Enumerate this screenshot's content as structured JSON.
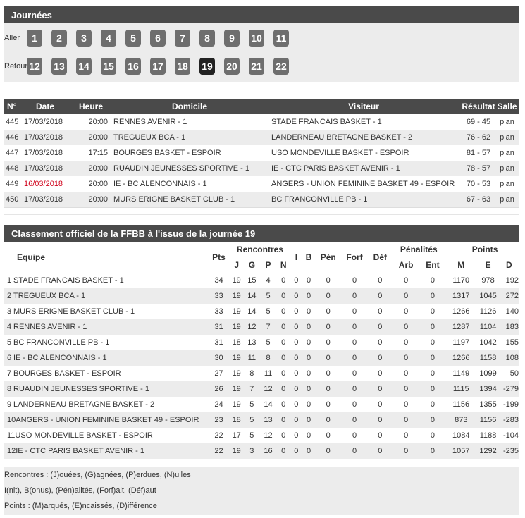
{
  "journees": {
    "title": "Journées",
    "aller_label": "Aller",
    "retour_label": "Retour",
    "aller": [
      "1",
      "2",
      "3",
      "4",
      "5",
      "6",
      "7",
      "8",
      "9",
      "10",
      "11"
    ],
    "retour": [
      "12",
      "13",
      "14",
      "15",
      "16",
      "17",
      "18",
      "19",
      "20",
      "21",
      "22"
    ],
    "active": "19"
  },
  "matches": {
    "headers": [
      "N°",
      "Date",
      "Heure",
      "Domicile",
      "Visiteur",
      "Résultat",
      "Salle"
    ],
    "rows": [
      {
        "num": "445",
        "date": "17/03/2018",
        "time": "20:00",
        "home": "RENNES AVENIR - 1",
        "away": "STADE FRANCAIS BASKET - 1",
        "score": "69 - 45",
        "salle": "plan"
      },
      {
        "num": "446",
        "date": "17/03/2018",
        "time": "20:00",
        "home": "TREGUEUX BCA - 1",
        "away": "LANDERNEAU BRETAGNE BASKET - 2",
        "score": "76 - 62",
        "salle": "plan"
      },
      {
        "num": "447",
        "date": "17/03/2018",
        "time": "17:15",
        "home": "BOURGES BASKET - ESPOIR",
        "away": "USO MONDEVILLE BASKET - ESPOIR",
        "score": "81 - 57",
        "salle": "plan"
      },
      {
        "num": "448",
        "date": "17/03/2018",
        "time": "20:00",
        "home": "RUAUDIN JEUNESSES SPORTIVE - 1",
        "away": "IE - CTC PARIS BASKET AVENIR - 1",
        "score": "78 - 57",
        "salle": "plan"
      },
      {
        "num": "449",
        "date": "16/03/2018",
        "time": "20:00",
        "home": "IE - BC ALENCONNAIS - 1",
        "away": "ANGERS - UNION FEMININE BASKET 49 - ESPOIR",
        "score": "70 - 53",
        "salle": "plan",
        "date_highlight": "#d0021b"
      },
      {
        "num": "450",
        "date": "17/03/2018",
        "time": "20:00",
        "home": "MURS ERIGNE BASKET CLUB - 1",
        "away": "BC FRANCONVILLE PB - 1",
        "score": "67 - 63",
        "salle": "plan"
      }
    ]
  },
  "standings": {
    "title": "Classement officiel de la FFBB à l'issue de la journée 19",
    "headers": {
      "equipe": "Equipe",
      "pts": "Pts",
      "rencontres": "Rencontres",
      "j": "J",
      "g": "G",
      "p": "P",
      "n": "N",
      "i": "I",
      "b": "B",
      "pen": "Pén",
      "forf": "Forf",
      "def": "Déf",
      "penalites": "Pénalités",
      "arb": "Arb",
      "ent": "Ent",
      "points": "Points",
      "m": "M",
      "e": "E",
      "d": "D"
    },
    "rows": [
      {
        "rank": "1",
        "team": "STADE FRANCAIS BASKET - 1",
        "pts": "34",
        "j": "19",
        "g": "15",
        "p": "4",
        "n": "0",
        "i": "0",
        "b": "0",
        "pen": "0",
        "forf": "0",
        "def": "0",
        "arb": "0",
        "ent": "0",
        "m": "1170",
        "e": "978",
        "d": "192"
      },
      {
        "rank": "2",
        "team": "TREGUEUX BCA - 1",
        "pts": "33",
        "j": "19",
        "g": "14",
        "p": "5",
        "n": "0",
        "i": "0",
        "b": "0",
        "pen": "0",
        "forf": "0",
        "def": "0",
        "arb": "0",
        "ent": "0",
        "m": "1317",
        "e": "1045",
        "d": "272"
      },
      {
        "rank": "3",
        "team": "MURS ERIGNE BASKET CLUB - 1",
        "pts": "33",
        "j": "19",
        "g": "14",
        "p": "5",
        "n": "0",
        "i": "0",
        "b": "0",
        "pen": "0",
        "forf": "0",
        "def": "0",
        "arb": "0",
        "ent": "0",
        "m": "1266",
        "e": "1126",
        "d": "140"
      },
      {
        "rank": "4",
        "team": "RENNES AVENIR - 1",
        "pts": "31",
        "j": "19",
        "g": "12",
        "p": "7",
        "n": "0",
        "i": "0",
        "b": "0",
        "pen": "0",
        "forf": "0",
        "def": "0",
        "arb": "0",
        "ent": "0",
        "m": "1287",
        "e": "1104",
        "d": "183"
      },
      {
        "rank": "5",
        "team": "BC FRANCONVILLE PB - 1",
        "pts": "31",
        "j": "18",
        "g": "13",
        "p": "5",
        "n": "0",
        "i": "0",
        "b": "0",
        "pen": "0",
        "forf": "0",
        "def": "0",
        "arb": "0",
        "ent": "0",
        "m": "1197",
        "e": "1042",
        "d": "155"
      },
      {
        "rank": "6",
        "team": "IE - BC ALENCONNAIS - 1",
        "pts": "30",
        "j": "19",
        "g": "11",
        "p": "8",
        "n": "0",
        "i": "0",
        "b": "0",
        "pen": "0",
        "forf": "0",
        "def": "0",
        "arb": "0",
        "ent": "0",
        "m": "1266",
        "e": "1158",
        "d": "108"
      },
      {
        "rank": "7",
        "team": "BOURGES BASKET - ESPOIR",
        "pts": "27",
        "j": "19",
        "g": "8",
        "p": "11",
        "n": "0",
        "i": "0",
        "b": "0",
        "pen": "0",
        "forf": "0",
        "def": "0",
        "arb": "0",
        "ent": "0",
        "m": "1149",
        "e": "1099",
        "d": "50"
      },
      {
        "rank": "8",
        "team": "RUAUDIN JEUNESSES SPORTIVE - 1",
        "pts": "26",
        "j": "19",
        "g": "7",
        "p": "12",
        "n": "0",
        "i": "0",
        "b": "0",
        "pen": "0",
        "forf": "0",
        "def": "0",
        "arb": "0",
        "ent": "0",
        "m": "1115",
        "e": "1394",
        "d": "-279"
      },
      {
        "rank": "9",
        "team": "LANDERNEAU BRETAGNE BASKET - 2",
        "pts": "24",
        "j": "19",
        "g": "5",
        "p": "14",
        "n": "0",
        "i": "0",
        "b": "0",
        "pen": "0",
        "forf": "0",
        "def": "0",
        "arb": "0",
        "ent": "0",
        "m": "1156",
        "e": "1355",
        "d": "-199"
      },
      {
        "rank": "10",
        "team": "ANGERS - UNION FEMININE BASKET 49 - ESPOIR",
        "pts": "23",
        "j": "18",
        "g": "5",
        "p": "13",
        "n": "0",
        "i": "0",
        "b": "0",
        "pen": "0",
        "forf": "0",
        "def": "0",
        "arb": "0",
        "ent": "0",
        "m": "873",
        "e": "1156",
        "d": "-283"
      },
      {
        "rank": "11",
        "team": "USO MONDEVILLE BASKET - ESPOIR",
        "pts": "22",
        "j": "17",
        "g": "5",
        "p": "12",
        "n": "0",
        "i": "0",
        "b": "0",
        "pen": "0",
        "forf": "0",
        "def": "0",
        "arb": "0",
        "ent": "0",
        "m": "1084",
        "e": "1188",
        "d": "-104"
      },
      {
        "rank": "12",
        "team": "IE - CTC PARIS BASKET AVENIR - 1",
        "pts": "22",
        "j": "19",
        "g": "3",
        "p": "16",
        "n": "0",
        "i": "0",
        "b": "0",
        "pen": "0",
        "forf": "0",
        "def": "0",
        "arb": "0",
        "ent": "0",
        "m": "1057",
        "e": "1292",
        "d": "-235"
      }
    ],
    "legend": [
      "Rencontres : (J)ouées, (G)agnées, (P)erdues, (N)ulles",
      "I(nit), B(onus), (Pén)alités, (Forf)ait, (Déf)aut",
      "Points : (M)arqués, (E)ncaissés, (D)ifférence"
    ]
  },
  "colors": {
    "header_bg": "#4a4a4a",
    "stripe": "#ececec",
    "day_button": "#6e6e6e",
    "day_active": "#222222",
    "accent_red": "#d0021b",
    "group_rule": "#b31b1b"
  }
}
